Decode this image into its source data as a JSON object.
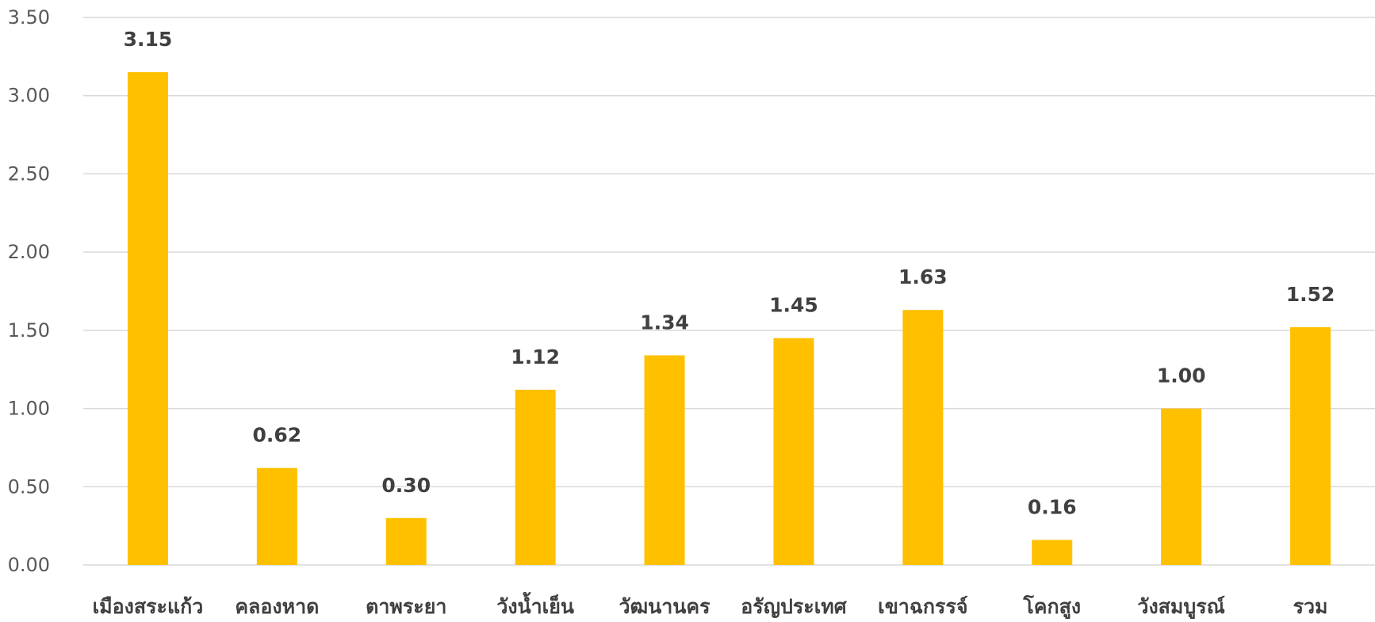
{
  "chart_data": {
    "type": "bar",
    "title": "",
    "xlabel": "",
    "ylabel": "",
    "categories": [
      "เมืองสระแก้ว",
      "คลองหาด",
      "ตาพระยา",
      "วังน้ำเย็น",
      "วัฒนานคร",
      "อรัญประเทศ",
      "เขาฉกรรจ์",
      "โคกสูง",
      "วังสมบูรณ์",
      "รวม"
    ],
    "values": [
      3.15,
      0.62,
      0.3,
      1.12,
      1.34,
      1.45,
      1.63,
      0.16,
      1.0,
      1.52
    ],
    "value_labels": [
      "3.15",
      "0.62",
      "0.30",
      "1.12",
      "1.34",
      "1.45",
      "1.63",
      "0.16",
      "1.00",
      "1.52"
    ],
    "ylim": [
      0,
      3.5
    ],
    "yticks": [
      0,
      0.5,
      1.0,
      1.5,
      2.0,
      2.5,
      3.0,
      3.5
    ],
    "ytick_labels": [
      "0.00",
      "0.50",
      "1.00",
      "1.50",
      "2.00",
      "2.50",
      "3.00",
      "3.50"
    ],
    "grid": true,
    "legend": "none",
    "bar_color": "#FFC000",
    "gridline_color": "#D9D9D9",
    "label_color": "#404040",
    "tick_color": "#595959"
  }
}
